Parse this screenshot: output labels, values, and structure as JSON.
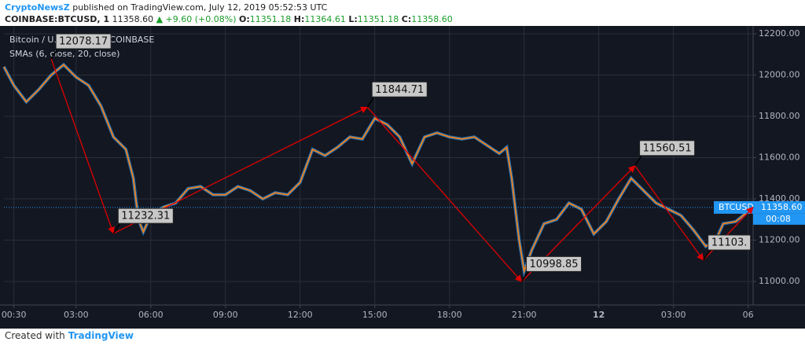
{
  "header": {
    "author": "CryptoNewsZ",
    "published": "published on TradingView.com, July 12, 2019 05:52:53 UTC",
    "symbol": "COINBASE:BTCUSD, 1",
    "last": "11358.60",
    "change": "▲ +9.60 (+0.08%)",
    "ohlc": [
      {
        "label": "O:",
        "value": "11351.18"
      },
      {
        "label": "H:",
        "value": "11364.61"
      },
      {
        "label": "L:",
        "value": "11351.18"
      },
      {
        "label": "C:",
        "value": "11358.60"
      }
    ]
  },
  "footer": {
    "created": "Created with",
    "brand": "TradingView"
  },
  "chart_data": {
    "type": "line",
    "title": "Bitcoin / U.S. Dollar, 1, COINBASE",
    "subtitle": "SMAs (6, close, 20, close)",
    "x": [
      0.1,
      0.5,
      1.0,
      1.5,
      2.0,
      2.5,
      3.0,
      3.5,
      4.0,
      4.5,
      5.0,
      5.3,
      5.5,
      5.7,
      6.0,
      6.5,
      7.0,
      7.5,
      8.0,
      8.5,
      9.0,
      9.5,
      10.0,
      10.5,
      11.0,
      11.5,
      12.0,
      12.5,
      13.0,
      13.5,
      14.0,
      14.5,
      15.0,
      15.5,
      16.0,
      16.5,
      17.0,
      17.5,
      18.0,
      18.5,
      19.0,
      19.5,
      20.0,
      20.3,
      20.5,
      20.8,
      21.0,
      21.3,
      21.8,
      22.3,
      22.8,
      23.3,
      23.8,
      24.3,
      24.8,
      25.3,
      25.8,
      26.3,
      26.8,
      27.3,
      27.8,
      28.3,
      28.7,
      29.0,
      29.5,
      30.0,
      30.2
    ],
    "series": [
      {
        "color": "#f57f17",
        "values": [
          12040,
          11950,
          11870,
          11930,
          12000,
          12050,
          11990,
          11950,
          11850,
          11700,
          11640,
          11500,
          11300,
          11240,
          11320,
          11360,
          11380,
          11450,
          11460,
          11420,
          11420,
          11460,
          11440,
          11400,
          11430,
          11420,
          11480,
          11640,
          11610,
          11650,
          11700,
          11690,
          11790,
          11760,
          11700,
          11570,
          11700,
          11720,
          11700,
          11690,
          11700,
          11660,
          11620,
          11650,
          11500,
          11200,
          11050,
          11150,
          11280,
          11300,
          11380,
          11350,
          11230,
          11290,
          11400,
          11500,
          11440,
          11380,
          11350,
          11320,
          11250,
          11170,
          11200,
          11280,
          11290,
          11340,
          11360
        ]
      }
    ],
    "xlim": [
      0.1,
      30.2
    ],
    "ylim": [
      10886,
      12238
    ],
    "xticks": [
      {
        "value": 0.5,
        "label": "00:30"
      },
      {
        "value": 3,
        "label": "03:00"
      },
      {
        "value": 6,
        "label": "06:00"
      },
      {
        "value": 9,
        "label": "09:00"
      },
      {
        "value": 12,
        "label": "12:00"
      },
      {
        "value": 15,
        "label": "15:00"
      },
      {
        "value": 18,
        "label": "18:00"
      },
      {
        "value": 21,
        "label": "21:00"
      },
      {
        "value": 24,
        "label": "12"
      },
      {
        "value": 27,
        "label": "03:00"
      },
      {
        "value": 30,
        "label": "06"
      }
    ],
    "yticks": [
      {
        "value": 11000,
        "label": "11000.00"
      },
      {
        "value": 11200,
        "label": "11200.00"
      },
      {
        "value": 11400,
        "label": "11400.00"
      },
      {
        "value": 11600,
        "label": "11600.00"
      },
      {
        "value": 11800,
        "label": "11800.00"
      },
      {
        "value": 12000,
        "label": "12000.00"
      },
      {
        "value": 12200,
        "label": "12200.00"
      }
    ],
    "grid": true,
    "annotations": [
      {
        "x": 2.0,
        "value": 12078.17
      },
      {
        "x": 4.5,
        "value": 11232.31
      },
      {
        "x": 14.7,
        "value": 11844.71
      },
      {
        "x": 20.9,
        "value": 10998.85
      },
      {
        "x": 25.45,
        "value": 11560.51
      },
      {
        "x": 28.2,
        "value": 11103,
        "label": "11103."
      }
    ],
    "arrow_color": "#e00000",
    "price_line": {
      "name": "BTCUSD",
      "value": 11358.6,
      "label": "11358.60",
      "countdown": "00:08"
    }
  }
}
